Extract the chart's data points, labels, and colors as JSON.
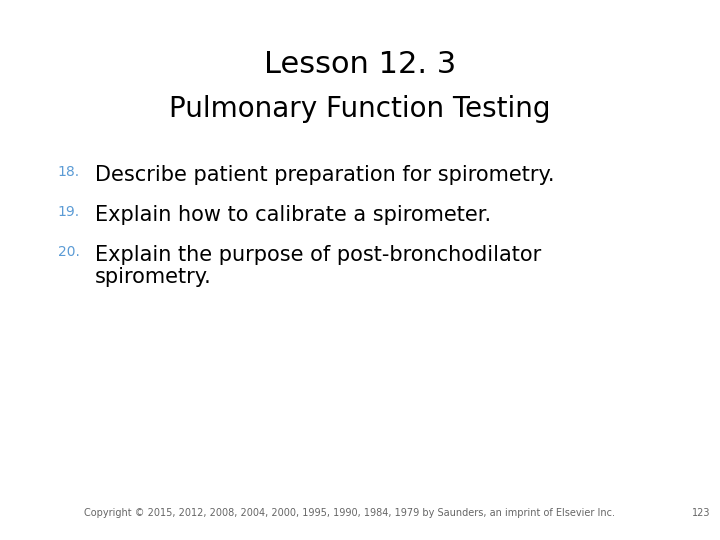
{
  "title_line1": "Lesson 12. 3",
  "title_line2": "Pulmonary Function Testing",
  "title_color": "#000000",
  "subtitle_color": "#000000",
  "number_color": "#5b9bd5",
  "item_color": "#000000",
  "background_color": "#ffffff",
  "items": [
    {
      "number": "18.",
      "text": "Describe patient preparation for spirometry."
    },
    {
      "number": "19.",
      "text": "Explain how to calibrate a spirometer."
    },
    {
      "number": "20.",
      "text": "Explain the purpose of post-bronchodilator\nspirometry."
    }
  ],
  "footer": "Copyright © 2015, 2012, 2008, 2004, 2000, 1995, 1990, 1984, 1979 by Saunders, an imprint of Elsevier Inc.",
  "page_number": "123",
  "title_fontsize": 22,
  "subtitle_fontsize": 20,
  "item_fontsize": 15,
  "number_fontsize": 10,
  "footer_fontsize": 7
}
